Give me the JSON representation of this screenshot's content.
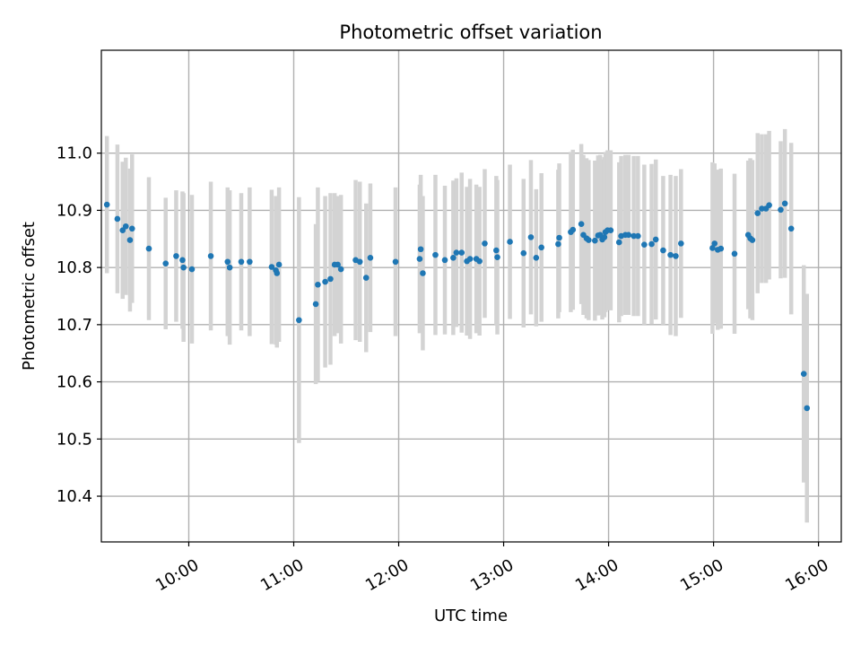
{
  "chart_data": {
    "type": "scatter",
    "title": "Photometric offset variation",
    "xlabel": "UTC time",
    "ylabel": "Photometric offset",
    "xlim": [
      9.167,
      16.217
    ],
    "ylim": [
      10.32,
      11.18
    ],
    "x_ticks": [
      {
        "value": 10,
        "label": "10:00"
      },
      {
        "value": 11,
        "label": "11:00"
      },
      {
        "value": 12,
        "label": "12:00"
      },
      {
        "value": 13,
        "label": "13:00"
      },
      {
        "value": 14,
        "label": "14:00"
      },
      {
        "value": 15,
        "label": "15:00"
      },
      {
        "value": 16,
        "label": "16:00"
      }
    ],
    "y_ticks": [
      {
        "value": 10.4,
        "label": "10.4"
      },
      {
        "value": 10.5,
        "label": "10.5"
      },
      {
        "value": 10.6,
        "label": "10.6"
      },
      {
        "value": 10.7,
        "label": "10.7"
      },
      {
        "value": 10.8,
        "label": "10.8"
      },
      {
        "value": 10.9,
        "label": "10.9"
      },
      {
        "value": 11.0,
        "label": "11.0"
      }
    ],
    "grid": true,
    "point_color": "#1f77b4",
    "errorbar_color": "#d3d3d3",
    "series": [
      {
        "name": "offset",
        "points": [
          [
            9.22,
            10.91,
            0.12
          ],
          [
            9.32,
            10.885,
            0.13
          ],
          [
            9.37,
            10.865,
            0.12
          ],
          [
            9.4,
            10.872,
            0.12
          ],
          [
            9.44,
            10.848,
            0.125
          ],
          [
            9.46,
            10.868,
            0.13
          ],
          [
            9.62,
            10.833,
            0.125
          ],
          [
            9.78,
            10.807,
            0.115
          ],
          [
            9.88,
            10.82,
            0.115
          ],
          [
            9.94,
            10.813,
            0.12
          ],
          [
            9.95,
            10.8,
            0.13
          ],
          [
            10.03,
            10.797,
            0.13
          ],
          [
            10.21,
            10.82,
            0.13
          ],
          [
            10.37,
            10.81,
            0.13
          ],
          [
            10.39,
            10.8,
            0.135
          ],
          [
            10.5,
            10.81,
            0.12
          ],
          [
            10.58,
            10.81,
            0.13
          ],
          [
            10.79,
            10.801,
            0.135
          ],
          [
            10.83,
            10.795,
            0.13
          ],
          [
            10.84,
            10.79,
            0.13
          ],
          [
            10.86,
            10.805,
            0.135
          ],
          [
            11.05,
            10.708,
            0.215
          ],
          [
            11.21,
            10.736,
            0.14
          ],
          [
            11.23,
            10.77,
            0.17
          ],
          [
            11.3,
            10.775,
            0.15
          ],
          [
            11.35,
            10.78,
            0.15
          ],
          [
            11.39,
            10.805,
            0.125
          ],
          [
            11.42,
            10.805,
            0.12
          ],
          [
            11.45,
            10.797,
            0.13
          ],
          [
            11.59,
            10.813,
            0.14
          ],
          [
            11.63,
            10.81,
            0.14
          ],
          [
            11.69,
            10.782,
            0.13
          ],
          [
            11.73,
            10.817,
            0.13
          ],
          [
            11.97,
            10.81,
            0.13
          ],
          [
            12.2,
            10.815,
            0.13
          ],
          [
            12.21,
            10.832,
            0.13
          ],
          [
            12.23,
            10.79,
            0.135
          ],
          [
            12.35,
            10.822,
            0.14
          ],
          [
            12.44,
            10.813,
            0.13
          ],
          [
            12.52,
            10.817,
            0.135
          ],
          [
            12.55,
            10.826,
            0.13
          ],
          [
            12.6,
            10.826,
            0.14
          ],
          [
            12.65,
            10.811,
            0.13
          ],
          [
            12.68,
            10.815,
            0.14
          ],
          [
            12.74,
            10.815,
            0.13
          ],
          [
            12.77,
            10.811,
            0.13
          ],
          [
            12.82,
            10.842,
            0.13
          ],
          [
            12.93,
            10.83,
            0.13
          ],
          [
            12.94,
            10.818,
            0.135
          ],
          [
            13.06,
            10.845,
            0.135
          ],
          [
            13.19,
            10.825,
            0.13
          ],
          [
            13.26,
            10.853,
            0.135
          ],
          [
            13.31,
            10.817,
            0.12
          ],
          [
            13.36,
            10.835,
            0.13
          ],
          [
            13.52,
            10.841,
            0.13
          ],
          [
            13.53,
            10.852,
            0.13
          ],
          [
            13.64,
            10.862,
            0.14
          ],
          [
            13.66,
            10.866,
            0.14
          ],
          [
            13.74,
            10.876,
            0.14
          ],
          [
            13.76,
            10.857,
            0.14
          ],
          [
            13.79,
            10.851,
            0.14
          ],
          [
            13.81,
            10.848,
            0.14
          ],
          [
            13.87,
            10.847,
            0.14
          ],
          [
            13.9,
            10.856,
            0.14
          ],
          [
            13.92,
            10.857,
            0.14
          ],
          [
            13.94,
            10.849,
            0.14
          ],
          [
            13.96,
            10.853,
            0.14
          ],
          [
            13.97,
            10.862,
            0.14
          ],
          [
            13.99,
            10.865,
            0.14
          ],
          [
            14.02,
            10.865,
            0.14
          ],
          [
            14.1,
            10.844,
            0.14
          ],
          [
            14.12,
            10.855,
            0.14
          ],
          [
            14.16,
            10.857,
            0.14
          ],
          [
            14.19,
            10.857,
            0.14
          ],
          [
            14.24,
            10.855,
            0.14
          ],
          [
            14.28,
            10.855,
            0.14
          ],
          [
            14.34,
            10.84,
            0.14
          ],
          [
            14.41,
            10.841,
            0.14
          ],
          [
            14.45,
            10.849,
            0.14
          ],
          [
            14.52,
            10.83,
            0.13
          ],
          [
            14.59,
            10.822,
            0.14
          ],
          [
            14.64,
            10.82,
            0.14
          ],
          [
            14.69,
            10.842,
            0.13
          ],
          [
            14.99,
            10.834,
            0.15
          ],
          [
            15.01,
            10.842,
            0.14
          ],
          [
            15.04,
            10.831,
            0.14
          ],
          [
            15.07,
            10.833,
            0.14
          ],
          [
            15.2,
            10.824,
            0.14
          ],
          [
            15.33,
            10.857,
            0.13
          ],
          [
            15.35,
            10.851,
            0.14
          ],
          [
            15.37,
            10.848,
            0.14
          ],
          [
            15.42,
            10.895,
            0.14
          ],
          [
            15.46,
            10.903,
            0.13
          ],
          [
            15.5,
            10.903,
            0.13
          ],
          [
            15.53,
            10.909,
            0.13
          ],
          [
            15.64,
            10.901,
            0.12
          ],
          [
            15.68,
            10.912,
            0.13
          ],
          [
            15.74,
            10.868,
            0.15
          ],
          [
            15.86,
            10.614,
            0.19
          ],
          [
            15.89,
            10.554,
            0.2
          ]
        ]
      }
    ]
  }
}
